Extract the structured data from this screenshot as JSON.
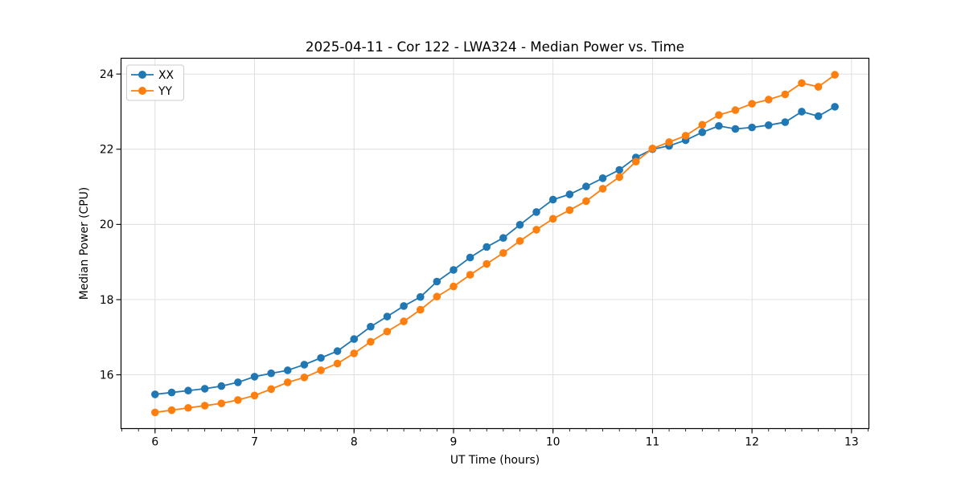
{
  "figure": {
    "title": "2025-04-11 - Cor 122 - LWA324 - Median Power vs. Time"
  },
  "chart_data": {
    "type": "line",
    "title": "2025-04-11 - Cor 122 - LWA324 - Median Power vs. Time",
    "xlabel": "UT Time (hours)",
    "ylabel": "Median Power (CPU)",
    "x": [
      6.0,
      6.167,
      6.333,
      6.5,
      6.667,
      6.833,
      7.0,
      7.167,
      7.333,
      7.5,
      7.667,
      7.833,
      8.0,
      8.167,
      8.333,
      8.5,
      8.667,
      8.833,
      9.0,
      9.167,
      9.333,
      9.5,
      9.667,
      9.833,
      10.0,
      10.167,
      10.333,
      10.5,
      10.667,
      10.833,
      11.0,
      11.167,
      11.333,
      11.5,
      11.667,
      11.833,
      12.0,
      12.167,
      12.333,
      12.5,
      12.667,
      12.833
    ],
    "series": [
      {
        "name": "XX",
        "color": "#1f77b4",
        "marker": "circle",
        "values": [
          15.48,
          15.53,
          15.58,
          15.63,
          15.7,
          15.8,
          15.95,
          16.04,
          16.12,
          16.27,
          16.45,
          16.63,
          16.95,
          17.28,
          17.55,
          17.83,
          18.07,
          18.48,
          18.79,
          19.12,
          19.4,
          19.64,
          19.99,
          20.33,
          20.66,
          20.8,
          21.01,
          21.23,
          21.45,
          21.78,
          22.0,
          22.09,
          22.24,
          22.45,
          22.62,
          22.54,
          22.58,
          22.64,
          22.72,
          23.0,
          22.88,
          23.13
        ]
      },
      {
        "name": "YY",
        "color": "#ff7f0e",
        "marker": "circle",
        "values": [
          15.0,
          15.06,
          15.12,
          15.18,
          15.24,
          15.33,
          15.45,
          15.62,
          15.8,
          15.93,
          16.12,
          16.3,
          16.57,
          16.88,
          17.15,
          17.42,
          17.73,
          18.08,
          18.35,
          18.66,
          18.95,
          19.24,
          19.56,
          19.86,
          20.15,
          20.38,
          20.62,
          20.95,
          21.26,
          21.67,
          22.02,
          22.19,
          22.36,
          22.65,
          22.91,
          23.04,
          23.21,
          23.32,
          23.46,
          23.76,
          23.66,
          23.98
        ]
      }
    ],
    "xlim": [
      5.658,
      13.175
    ],
    "ylim": [
      14.57,
      24.42
    ],
    "x_major_ticks": [
      6,
      7,
      8,
      9,
      10,
      11,
      12,
      13
    ],
    "x_minor_step": 0.16667,
    "y_major_ticks": [
      16,
      18,
      20,
      22,
      24
    ],
    "grid": true,
    "legend_position": "upper left",
    "colors": {
      "grid": "#dcdcdc",
      "spine": "#000000",
      "text": "#000000",
      "legend_border": "#cccccc",
      "legend_bg": "#ffffff"
    }
  }
}
